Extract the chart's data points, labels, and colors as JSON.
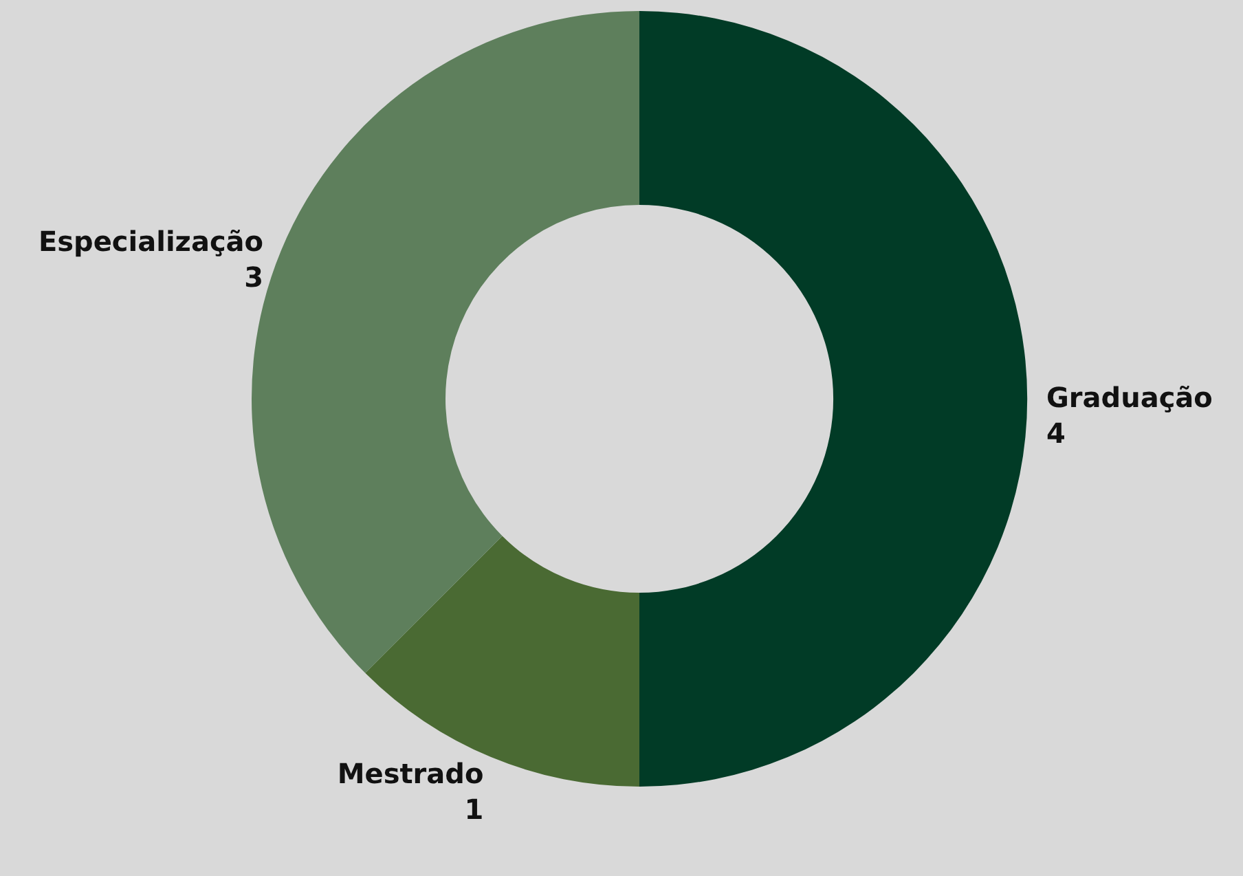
{
  "chart_data": {
    "type": "donut",
    "categories": [
      "Graduação",
      "Mestrado",
      "Especialização"
    ],
    "values": [
      4,
      1,
      3
    ],
    "colors": [
      "#013b26",
      "#4a6a33",
      "#5e7f5c"
    ],
    "data_labels": true
  }
}
